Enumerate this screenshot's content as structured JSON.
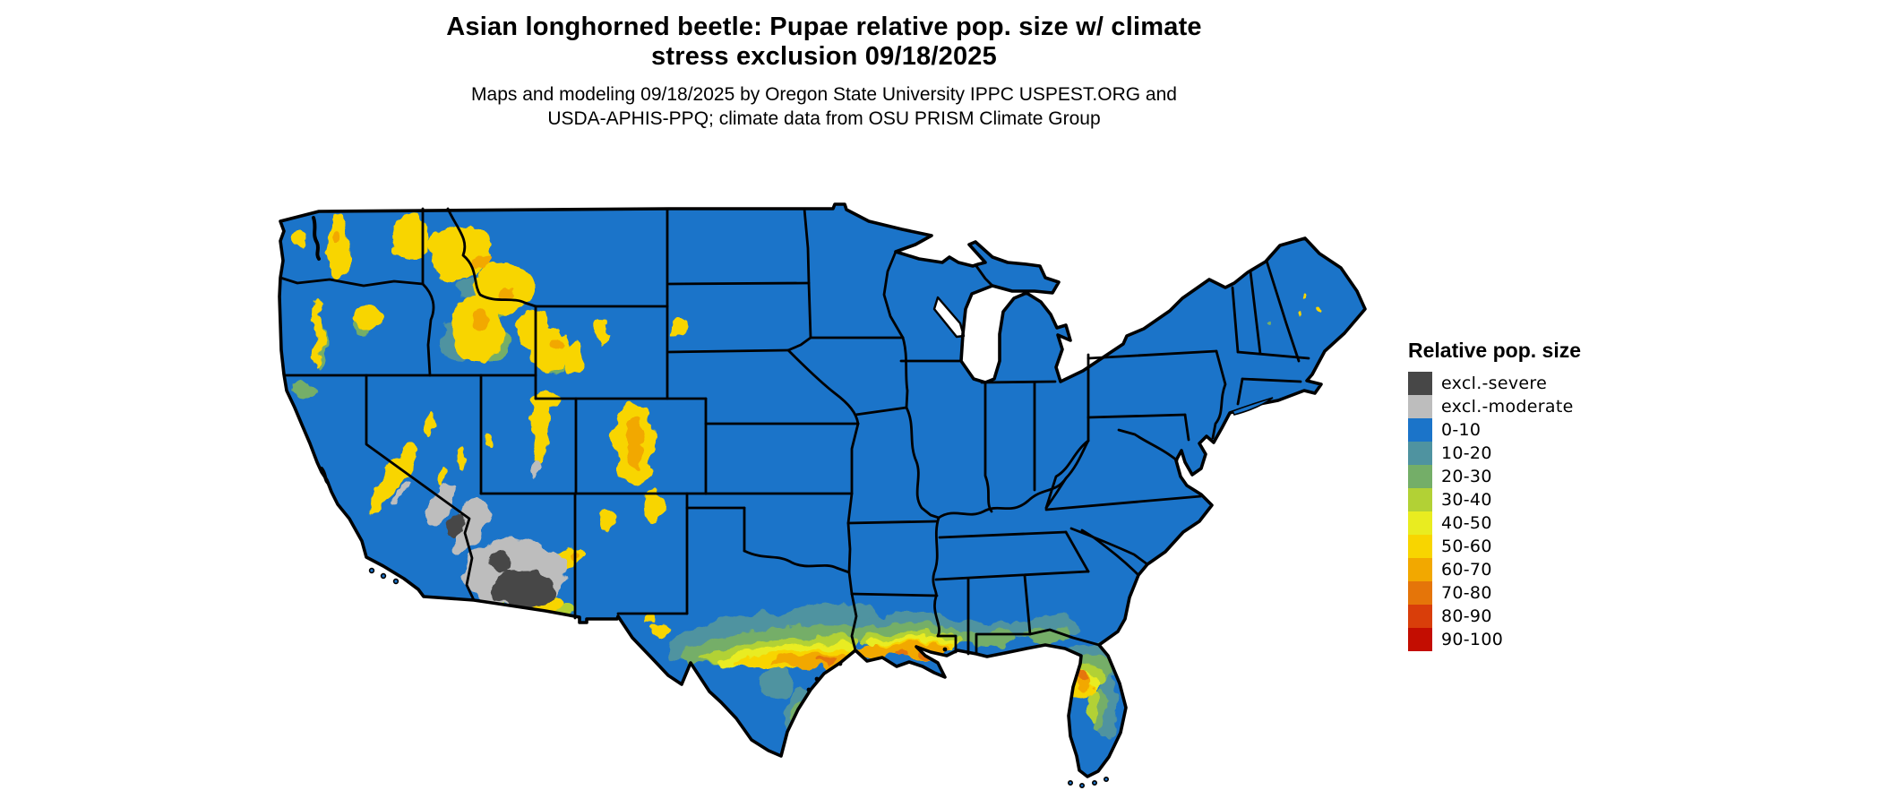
{
  "header": {
    "title_line1": "Asian longhorned beetle: Pupae relative pop. size w/ climate",
    "title_line2": "stress exclusion 09/18/2025",
    "subtitle_line1": "Maps and modeling 09/18/2025 by Oregon State University IPPC USPEST.ORG and",
    "subtitle_line2": "USDA-APHIS-PPQ; climate data from OSU PRISM Climate Group"
  },
  "legend": {
    "title": "Relative pop. size",
    "items": [
      {
        "label": "excl.-severe",
        "color": "#474747"
      },
      {
        "label": "excl.-moderate",
        "color": "#bdbdbd"
      },
      {
        "label": "0-10",
        "color": "#1b74c9"
      },
      {
        "label": "10-20",
        "color": "#4f93a0"
      },
      {
        "label": "20-30",
        "color": "#74ae68"
      },
      {
        "label": "30-40",
        "color": "#b2d135"
      },
      {
        "label": "40-50",
        "color": "#e9ec20"
      },
      {
        "label": "50-60",
        "color": "#f8d500"
      },
      {
        "label": "60-70",
        "color": "#f2a800"
      },
      {
        "label": "70-80",
        "color": "#e57509"
      },
      {
        "label": "80-90",
        "color": "#d93e0a"
      },
      {
        "label": "90-100",
        "color": "#c30d01"
      }
    ]
  },
  "map": {
    "background_color": "#ffffff",
    "border_color": "#000000",
    "base_category": "0-10",
    "depicted_patterns": [
      {
        "area": "most of the conterminous US",
        "category": "0-10"
      },
      {
        "area": "Cascades, Northern Rockies, Wasatch, Colorado Rockies, Sierra Nevada",
        "category": "40-70"
      },
      {
        "area": "southern Arizona / SE California deserts",
        "category": "excl.-severe / excl.-moderate"
      },
      {
        "area": "Texas-Louisiana Gulf coastal plain and central Florida",
        "category": "20-70"
      }
    ]
  }
}
